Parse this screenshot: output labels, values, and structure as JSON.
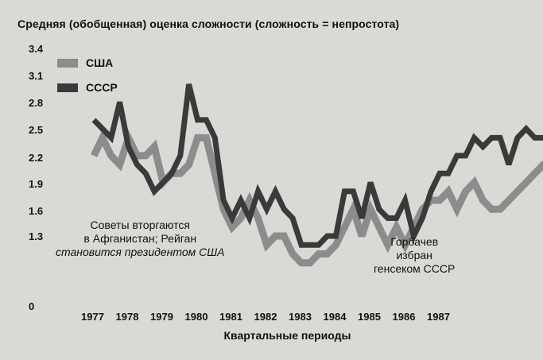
{
  "chart_data": {
    "type": "line",
    "title": "Средняя (обобщенная) оценка сложности (сложность = непростота)",
    "xlabel": "Квартальные периоды",
    "ylabel": "",
    "ylim": [
      0,
      3.4
    ],
    "y_ticks": [
      "0",
      "1.3",
      "1.6",
      "1.9",
      "2.2",
      "2.5",
      "2.8",
      "3.1",
      "3.4"
    ],
    "x_ticks": [
      "1977",
      "1978",
      "1979",
      "1980",
      "1981",
      "1982",
      "1983",
      "1984",
      "1985",
      "1986",
      "1987"
    ],
    "x_start": 1977,
    "x_per_year": 4,
    "grid": false,
    "legend_position": "top-left",
    "series": [
      {
        "name": "США",
        "color": "#8c8c8c",
        "values": [
          2.2,
          2.4,
          2.2,
          2.1,
          2.4,
          2.2,
          2.2,
          2.3,
          1.9,
          2.0,
          2.0,
          2.1,
          2.4,
          2.4,
          2.0,
          1.6,
          1.4,
          1.5,
          1.7,
          1.5,
          1.2,
          1.3,
          1.3,
          1.1,
          1.0,
          1.0,
          1.1,
          1.1,
          1.2,
          1.4,
          1.6,
          1.3,
          1.6,
          1.4,
          1.2,
          1.4,
          1.2,
          1.4,
          1.6,
          1.7,
          1.7,
          1.8,
          1.6,
          1.8,
          1.9,
          1.7,
          1.6,
          1.6,
          1.7,
          1.8,
          1.9,
          2.0,
          2.1,
          2.1
        ]
      },
      {
        "name": "СССР",
        "color": "#3a3a3a",
        "values": [
          2.6,
          2.5,
          2.4,
          2.8,
          2.3,
          2.1,
          2.0,
          1.8,
          1.9,
          2.0,
          2.2,
          3.0,
          2.6,
          2.6,
          2.4,
          1.7,
          1.5,
          1.7,
          1.5,
          1.8,
          1.6,
          1.8,
          1.6,
          1.5,
          1.2,
          1.2,
          1.2,
          1.3,
          1.3,
          1.8,
          1.8,
          1.5,
          1.9,
          1.6,
          1.5,
          1.5,
          1.7,
          1.3,
          1.5,
          1.8,
          2.0,
          2.0,
          2.2,
          2.2,
          2.4,
          2.3,
          2.4,
          2.4,
          2.1,
          2.4,
          2.5,
          2.4,
          2.4,
          2.4
        ]
      }
    ],
    "annotations": [
      [
        "Советы вторгаются",
        "в Афганистан; Рейган",
        "становится президентом США"
      ],
      [
        "Горбачев",
        "избран",
        "генсеком СССР"
      ]
    ]
  }
}
